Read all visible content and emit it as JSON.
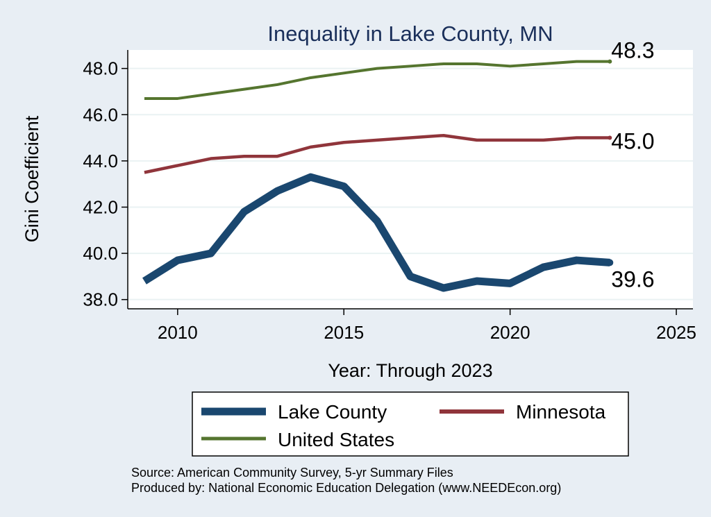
{
  "chart_data": {
    "type": "line",
    "title": "Inequality in Lake County, MN",
    "xlabel": "Year: Through 2023",
    "ylabel": "Gini Coefficient",
    "xlim": [
      2008.5,
      2025.5
    ],
    "ylim": [
      37.6,
      48.8
    ],
    "xticks": [
      2010,
      2015,
      2020,
      2025
    ],
    "xtick_labels": [
      "2010",
      "2015",
      "2020",
      "2025"
    ],
    "yticks": [
      38,
      40,
      42,
      44,
      46,
      48
    ],
    "ytick_labels": [
      "38.0",
      "40.0",
      "42.0",
      "44.0",
      "46.0",
      "48.0"
    ],
    "grid": true,
    "x": [
      2009,
      2010,
      2011,
      2012,
      2013,
      2014,
      2015,
      2016,
      2017,
      2018,
      2019,
      2020,
      2021,
      2022,
      2023
    ],
    "series": [
      {
        "name": "Lake County",
        "color": "#1a476f",
        "values": [
          38.8,
          39.7,
          40.0,
          41.8,
          42.7,
          43.3,
          42.9,
          41.4,
          39.0,
          38.5,
          38.8,
          38.7,
          39.4,
          39.7,
          39.6
        ],
        "end_label": "39.6"
      },
      {
        "name": "Minnesota",
        "color": "#90353b",
        "values": [
          43.5,
          43.8,
          44.1,
          44.2,
          44.2,
          44.6,
          44.8,
          44.9,
          45.0,
          45.1,
          44.9,
          44.9,
          44.9,
          45.0,
          45.0
        ],
        "end_label": "45.0"
      },
      {
        "name": "United States",
        "color": "#55752f",
        "values": [
          46.7,
          46.7,
          46.9,
          47.1,
          47.3,
          47.6,
          47.8,
          48.0,
          48.1,
          48.2,
          48.2,
          48.1,
          48.2,
          48.3,
          48.3
        ],
        "end_label": "48.3"
      }
    ],
    "legend": {
      "placement": "bottom",
      "entries": [
        "Lake County",
        "Minnesota",
        "United States"
      ]
    },
    "notes": [
      "Source: American Community Survey, 5-yr Summary Files",
      "Produced by: National Economic Education Delegation (www.NEEDEcon.org)"
    ]
  },
  "colors": {
    "background": "#e8eef4",
    "plot_background": "#ffffff",
    "grid": "#eaf2f3",
    "title": "#1a2f5a"
  }
}
